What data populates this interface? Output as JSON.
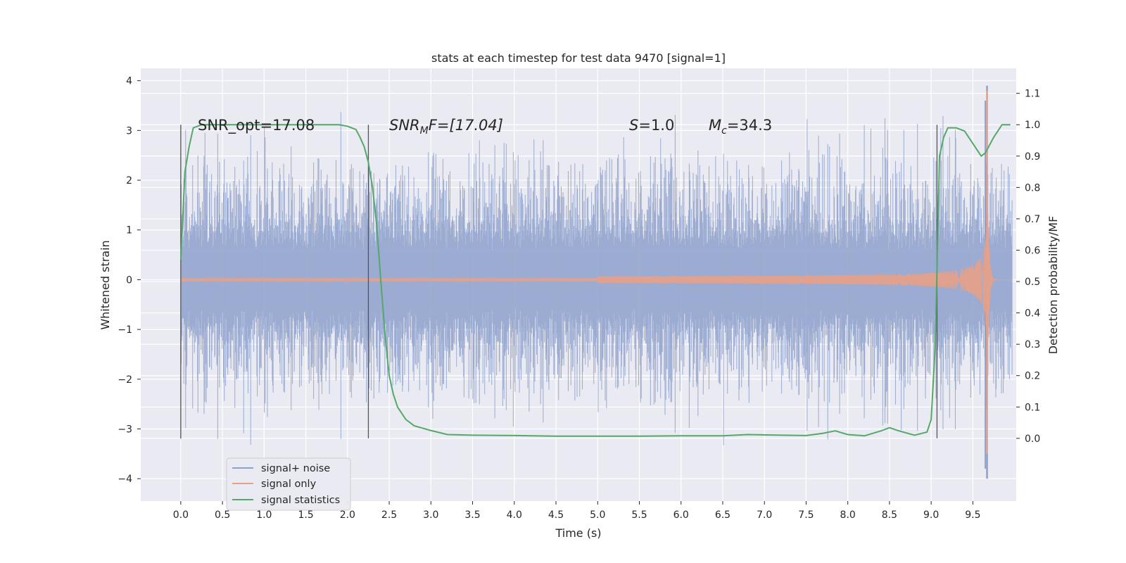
{
  "chart_data": {
    "type": "line",
    "title": "stats at each timestep for test data 9470 [signal=1]",
    "xlabel": "Time (s)",
    "ylabel_left": "Whitened strain",
    "ylabel_right": "Detection probability/MF",
    "xlim": [
      -0.48,
      10.02
    ],
    "ylim_left": [
      -4.45,
      4.25
    ],
    "ylim_right": [
      -0.2,
      1.18
    ],
    "x_ticks": [
      "0.0",
      "0.5",
      "1.0",
      "1.5",
      "2.0",
      "2.5",
      "3.0",
      "3.5",
      "4.0",
      "4.5",
      "5.0",
      "5.5",
      "6.0",
      "6.5",
      "7.0",
      "7.5",
      "8.0",
      "8.5",
      "9.0",
      "9.5"
    ],
    "y_ticks_left": [
      "4",
      "3",
      "2",
      "1",
      "0",
      "−1",
      "−2",
      "−3",
      "−4"
    ],
    "y_ticks_right": [
      "1.1",
      "1.0",
      "0.9",
      "0.8",
      "0.7",
      "0.6",
      "0.5",
      "0.4",
      "0.3",
      "0.2",
      "0.1",
      "0.0"
    ],
    "grid": true,
    "legend_position": "lower-left",
    "annotations": {
      "snr_opt": "SNR_opt=17.08",
      "snr_mf_label": "SNR",
      "snr_mf_sub": "M",
      "snr_mf_rest": "F=[17.04]",
      "s_label": "S",
      "s_value": "=1.0",
      "mc_label": "M",
      "mc_sub": "c",
      "mc_value": "=34.3"
    },
    "vertical_lines": [
      0.0,
      2.25,
      9.07
    ],
    "series": [
      {
        "name": "signal+ noise",
        "color": "#8da0cb",
        "description_values": "whitened noise, roughly within ±2.5 with spikes to ±3.5, burst near 9.65 s reaching 3.9 / −4.0",
        "x_range": [
          0.0,
          9.97
        ],
        "envelope_core": 1.5,
        "envelope_peak": 3.5
      },
      {
        "name": "signal only",
        "color": "#e8a087",
        "chirp": {
          "start": 5.0,
          "merger": 9.67,
          "peak_amplitude": 3.8,
          "end": 9.97
        }
      },
      {
        "name": "signal statistics",
        "color": "#55a868",
        "x": [
          0.0,
          0.05,
          0.1,
          0.15,
          0.25,
          0.5,
          1.0,
          1.5,
          1.9,
          2.0,
          2.1,
          2.15,
          2.2,
          2.25,
          2.3,
          2.35,
          2.4,
          2.45,
          2.5,
          2.55,
          2.6,
          2.7,
          2.8,
          3.0,
          3.2,
          3.5,
          4.0,
          4.5,
          5.0,
          5.5,
          6.0,
          6.5,
          6.8,
          7.2,
          7.5,
          7.7,
          7.85,
          8.0,
          8.2,
          8.4,
          8.5,
          8.6,
          8.8,
          8.95,
          9.0,
          9.05,
          9.1,
          9.15,
          9.2,
          9.3,
          9.4,
          9.5,
          9.6,
          9.65,
          9.75,
          9.85,
          9.95
        ],
        "values": [
          0.57,
          0.85,
          0.93,
          0.99,
          1.0,
          1.0,
          1.0,
          1.0,
          1.0,
          0.995,
          0.985,
          0.96,
          0.93,
          0.88,
          0.8,
          0.68,
          0.5,
          0.33,
          0.2,
          0.14,
          0.1,
          0.06,
          0.04,
          0.025,
          0.012,
          0.01,
          0.009,
          0.007,
          0.007,
          0.007,
          0.008,
          0.008,
          0.012,
          0.01,
          0.009,
          0.016,
          0.024,
          0.012,
          0.008,
          0.024,
          0.034,
          0.025,
          0.01,
          0.02,
          0.06,
          0.3,
          0.9,
          0.96,
          0.99,
          0.99,
          0.98,
          0.94,
          0.9,
          0.91,
          0.96,
          1.0,
          1.0
        ]
      }
    ]
  }
}
